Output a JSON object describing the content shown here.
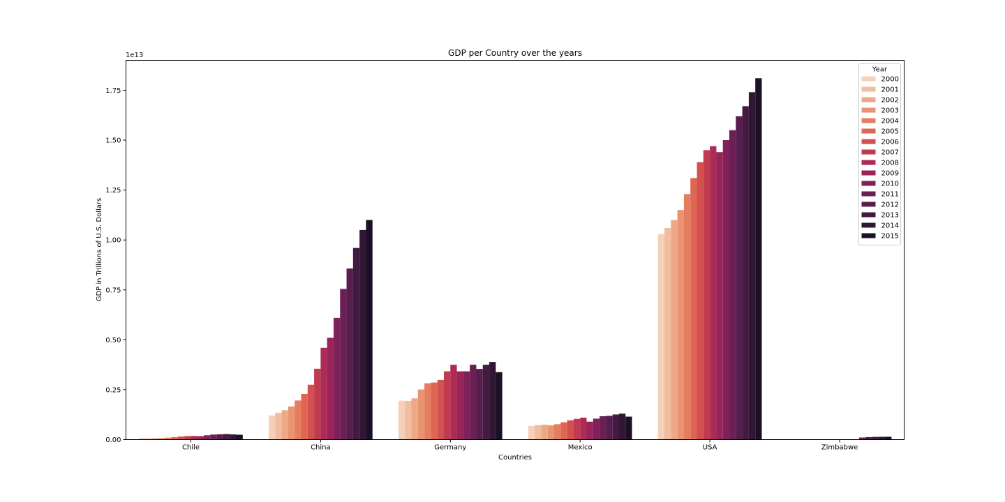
{
  "chart_data": {
    "type": "bar",
    "title": "GDP per Country over the years",
    "xlabel": "Countries",
    "ylabel": "GDP in Trillions of U.S. Dollars",
    "y_offset_label": "1e13",
    "ylim": [
      0,
      1.9
    ],
    "y_ticks": [
      "0.00",
      "0.25",
      "0.50",
      "0.75",
      "1.00",
      "1.25",
      "1.50",
      "1.75"
    ],
    "categories": [
      "Chile",
      "China",
      "Germany",
      "Mexico",
      "USA",
      "Zimbabwe"
    ],
    "legend": {
      "title": "Year",
      "placement": "top-right"
    },
    "series": [
      {
        "name": "2000",
        "color": "#f5d0b8",
        "values": [
          0.0077,
          0.121,
          0.195,
          0.0683,
          1.03,
          0.00067
        ]
      },
      {
        "name": "2001",
        "color": "#f0bda1",
        "values": [
          0.0069,
          0.134,
          0.194,
          0.0724,
          1.06,
          0.00068
        ]
      },
      {
        "name": "2002",
        "color": "#eda987",
        "values": [
          0.0069,
          0.147,
          0.207,
          0.0741,
          1.1,
          0.00067
        ]
      },
      {
        "name": "2003",
        "color": "#e99470",
        "values": [
          0.0076,
          0.166,
          0.251,
          0.0713,
          1.15,
          0.00063
        ]
      },
      {
        "name": "2004",
        "color": "#e47e5f",
        "values": [
          0.0099,
          0.196,
          0.282,
          0.077,
          1.23,
          0.00059
        ]
      },
      {
        "name": "2005",
        "color": "#de6653",
        "values": [
          0.0123,
          0.229,
          0.286,
          0.0866,
          1.31,
          0.00058
        ]
      },
      {
        "name": "2006",
        "color": "#d2504e",
        "values": [
          0.0155,
          0.275,
          0.299,
          0.0966,
          1.39,
          0.00052
        ]
      },
      {
        "name": "2007",
        "color": "#c13b4e",
        "values": [
          0.0173,
          0.355,
          0.342,
          0.104,
          1.45,
          0.00053
        ]
      },
      {
        "name": "2008",
        "color": "#ad2c55",
        "values": [
          0.0179,
          0.46,
          0.375,
          0.11,
          1.47,
          0.00044
        ]
      },
      {
        "name": "2009",
        "color": "#982459",
        "values": [
          0.0172,
          0.51,
          0.342,
          0.09,
          1.44,
          0.00081
        ]
      },
      {
        "name": "2010",
        "color": "#81215a",
        "values": [
          0.0218,
          0.61,
          0.342,
          0.105,
          1.5,
          0.00095
        ]
      },
      {
        "name": "2011",
        "color": "#6b2055",
        "values": [
          0.0252,
          0.755,
          0.375,
          0.117,
          1.55,
          0.0105
        ]
      },
      {
        "name": "2012",
        "color": "#571e4d",
        "values": [
          0.0266,
          0.857,
          0.354,
          0.119,
          1.62,
          0.0124
        ]
      },
      {
        "name": "2013",
        "color": "#431a41",
        "values": [
          0.0278,
          0.96,
          0.375,
          0.126,
          1.67,
          0.0135
        ]
      },
      {
        "name": "2014",
        "color": "#301734",
        "values": [
          0.026,
          1.05,
          0.389,
          0.13,
          1.74,
          0.0141
        ]
      },
      {
        "name": "2015",
        "color": "#1c1026",
        "values": [
          0.0243,
          1.1,
          0.338,
          0.115,
          1.81,
          0.0142
        ]
      }
    ]
  }
}
